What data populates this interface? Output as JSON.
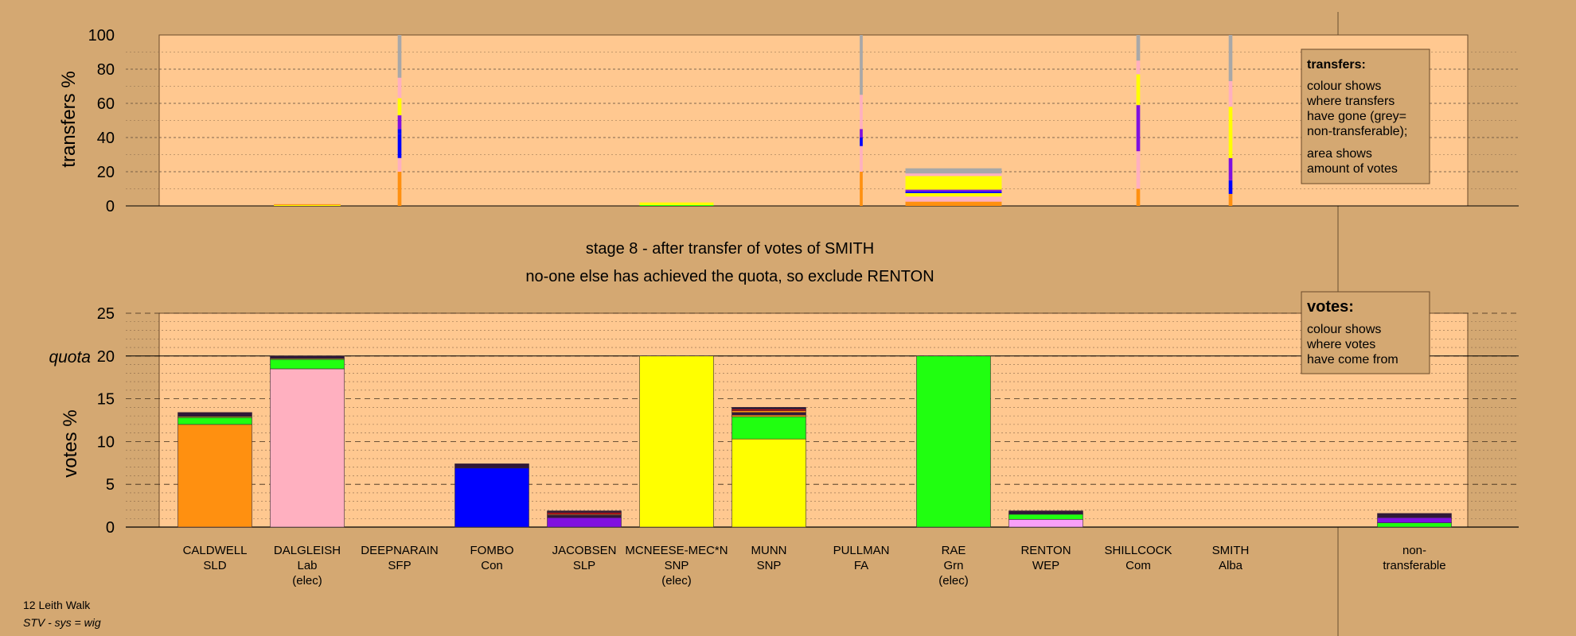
{
  "chart_data": {
    "type": "bar",
    "stage_title": "stage 8 - after transfer of votes of SMITH",
    "stage_subtitle": "no-one else has achieved the quota, so exclude RENTON",
    "footer": {
      "ward": "12 Leith Walk",
      "system": "STV - sys = wig"
    },
    "colors": {
      "SLD": "#ff9010",
      "Lab": "#ffb0c0",
      "SFP": "#ffe0b0",
      "Con": "#0000ff",
      "SLP": "#8010e0",
      "SNP": "#ffff00",
      "FA": "#e0d0b0",
      "Grn": "#20ff10",
      "WEP": "#f8a0f8",
      "Com": "#c01010",
      "Alba": "#4040a0",
      "nontransferable": "#a8a8a8",
      "dark": "#301838",
      "background": "#d4a872",
      "panel": "#ffc890"
    },
    "candidates": [
      {
        "name": "CALDWELL",
        "party": "SLD",
        "note": ""
      },
      {
        "name": "DALGLEISH",
        "party": "Lab",
        "note": "(elec)"
      },
      {
        "name": "DEEPNARAIN",
        "party": "SFP",
        "note": ""
      },
      {
        "name": "FOMBO",
        "party": "Con",
        "note": ""
      },
      {
        "name": "JACOBSEN",
        "party": "SLP",
        "note": ""
      },
      {
        "name": "MCNEESE-MEC*N",
        "party": "SNP",
        "note": "(elec)"
      },
      {
        "name": "MUNN",
        "party": "SNP",
        "note": ""
      },
      {
        "name": "PULLMAN",
        "party": "FA",
        "note": ""
      },
      {
        "name": "RAE",
        "party": "Grn",
        "note": "(elec)"
      },
      {
        "name": "RENTON",
        "party": "WEP",
        "note": ""
      },
      {
        "name": "SHILLCOCK",
        "party": "Com",
        "note": ""
      },
      {
        "name": "SMITH",
        "party": "Alba",
        "note": ""
      }
    ],
    "nontransferable_label": [
      "non-",
      "transferable"
    ],
    "votes": {
      "ylabel": "votes %",
      "ylim": [
        0,
        25
      ],
      "ticks": [
        0,
        5,
        10,
        15,
        20,
        25
      ],
      "quota": 20,
      "quota_label": "quota",
      "stacks": [
        [
          {
            "c": "SLD",
            "v": 12.0
          },
          {
            "c": "Grn",
            "v": 0.8
          },
          {
            "c": "SNP",
            "v": 0.1
          },
          {
            "c": "dark",
            "v": 0.5
          }
        ],
        [
          {
            "c": "Lab",
            "v": 18.5
          },
          {
            "c": "Grn",
            "v": 1.1
          },
          {
            "c": "SNP",
            "v": 0.1
          },
          {
            "c": "dark",
            "v": 0.3
          }
        ],
        [],
        [
          {
            "c": "Con",
            "v": 6.9
          },
          {
            "c": "dark",
            "v": 0.5
          }
        ],
        [
          {
            "c": "SLP",
            "v": 1.1
          },
          {
            "c": "dark",
            "v": 0.3
          },
          {
            "c": "SLD",
            "v": 0.1
          },
          {
            "c": "Com",
            "v": 0.2
          },
          {
            "c": "dark",
            "v": 0.2
          }
        ],
        [
          {
            "c": "SNP",
            "v": 20.0
          }
        ],
        [
          {
            "c": "SNP",
            "v": 10.3
          },
          {
            "c": "Grn",
            "v": 2.6
          },
          {
            "c": "SLD",
            "v": 0.2
          },
          {
            "c": "dark",
            "v": 0.3
          },
          {
            "c": "SLD",
            "v": 0.2
          },
          {
            "c": "Com",
            "v": 0.2
          },
          {
            "c": "dark",
            "v": 0.2
          }
        ],
        [],
        [
          {
            "c": "Grn",
            "v": 20.0
          }
        ],
        [
          {
            "c": "WEP",
            "v": 0.9
          },
          {
            "c": "Grn",
            "v": 0.6
          },
          {
            "c": "dark",
            "v": 0.4
          }
        ],
        [],
        []
      ],
      "nontransferable": [
        {
          "c": "Grn",
          "v": 0.5
        },
        {
          "c": "SLP",
          "v": 0.6
        },
        {
          "c": "dark",
          "v": 0.5
        }
      ],
      "legend": {
        "title": "votes:",
        "lines": [
          "colour shows",
          "where votes",
          "have come from"
        ]
      }
    },
    "transfers": {
      "ylabel": "transfers %",
      "ylim": [
        0,
        100
      ],
      "ticks": [
        0,
        20,
        40,
        60,
        80,
        100
      ],
      "columns": [
        {
          "index": 1,
          "width_rel": 0.9,
          "segments": [
            {
              "c": "SNP",
              "v": 0.5
            },
            {
              "c": "SLD",
              "v": 0.5
            }
          ]
        },
        {
          "index": 2,
          "width_rel": 0.05,
          "segments": [
            {
              "c": "SLD",
              "v": 20
            },
            {
              "c": "Lab",
              "v": 8
            },
            {
              "c": "Con",
              "v": 14
            },
            {
              "c": "Con",
              "v": 3
            },
            {
              "c": "SLP",
              "v": 8
            },
            {
              "c": "SNP",
              "v": 10
            },
            {
              "c": "Lab",
              "v": 12
            },
            {
              "c": "nontransferable",
              "v": 25
            }
          ]
        },
        {
          "index": 5,
          "width_rel": 1.0,
          "segments": [
            {
              "c": "Grn",
              "v": 0.5
            },
            {
              "c": "SNP",
              "v": 1.5
            }
          ]
        },
        {
          "index": 7,
          "width_rel": 0.04,
          "segments": [
            {
              "c": "SLD",
              "v": 20
            },
            {
              "c": "Lab",
              "v": 15
            },
            {
              "c": "Con",
              "v": 5
            },
            {
              "c": "SLP",
              "v": 5
            },
            {
              "c": "Lab",
              "v": 20
            },
            {
              "c": "nontransferable",
              "v": 35
            }
          ]
        },
        {
          "index": 8,
          "width_rel": 1.3,
          "segments": [
            {
              "c": "SLD",
              "v": 2.5
            },
            {
              "c": "Lab",
              "v": 3
            },
            {
              "c": "SNP",
              "v": 2
            },
            {
              "c": "Con",
              "v": 1
            },
            {
              "c": "SLP",
              "v": 1
            },
            {
              "c": "SNP",
              "v": 8
            },
            {
              "c": "Lab",
              "v": 1.5
            },
            {
              "c": "nontransferable",
              "v": 3
            }
          ]
        },
        {
          "index": 10,
          "width_rel": 0.05,
          "segments": [
            {
              "c": "SLD",
              "v": 10
            },
            {
              "c": "Lab",
              "v": 22
            },
            {
              "c": "SLP",
              "v": 27
            },
            {
              "c": "SNP",
              "v": 18
            },
            {
              "c": "Lab",
              "v": 8
            },
            {
              "c": "nontransferable",
              "v": 15
            }
          ]
        },
        {
          "index": 11,
          "width_rel": 0.05,
          "segments": [
            {
              "c": "SLD",
              "v": 7
            },
            {
              "c": "Con",
              "v": 8
            },
            {
              "c": "SLP",
              "v": 13
            },
            {
              "c": "SNP",
              "v": 30
            },
            {
              "c": "Lab",
              "v": 15
            },
            {
              "c": "nontransferable",
              "v": 27
            }
          ]
        }
      ],
      "legend": {
        "title": "transfers:",
        "para1": [
          "colour shows",
          "where transfers",
          "have gone (grey=",
          "non-transferable);"
        ],
        "para2": [
          "area shows",
          "amount of votes"
        ]
      }
    }
  }
}
